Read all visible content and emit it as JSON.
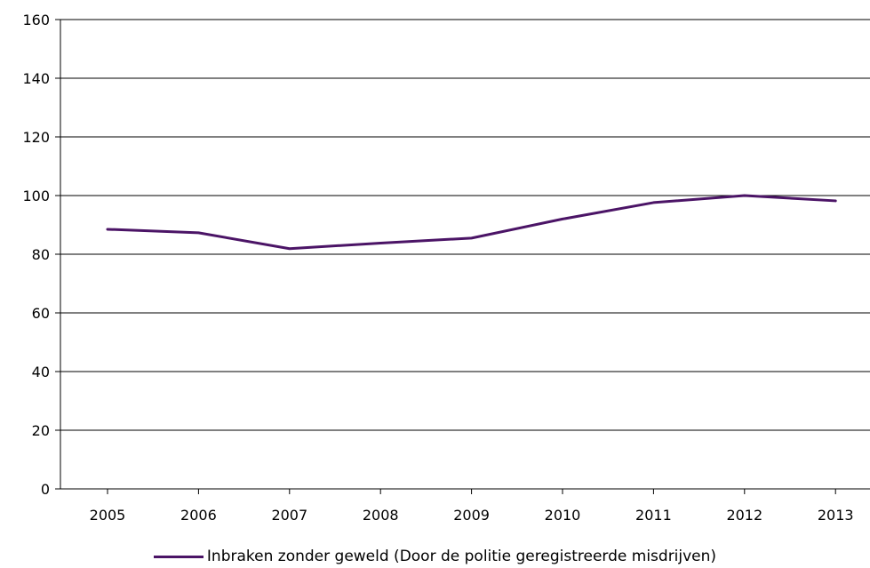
{
  "chart_data": {
    "type": "line",
    "title": "",
    "xlabel": "",
    "ylabel": "",
    "categories": [
      "2005",
      "2006",
      "2007",
      "2008",
      "2009",
      "2010",
      "2011",
      "2012",
      "2013"
    ],
    "series": [
      {
        "name": "Inbraken zonder geweld (Door de politie geregistreerde misdrijven)",
        "color": "#4b1466",
        "values": [
          88.5,
          87.3,
          81.9,
          83.8,
          85.5,
          92,
          97.6,
          100,
          98.2
        ]
      }
    ],
    "ylim": [
      0,
      160
    ],
    "yticks": [
      "0",
      "20",
      "40",
      "60",
      "80",
      "100",
      "120",
      "140",
      "160"
    ],
    "grid": true,
    "legend": "bottom"
  }
}
